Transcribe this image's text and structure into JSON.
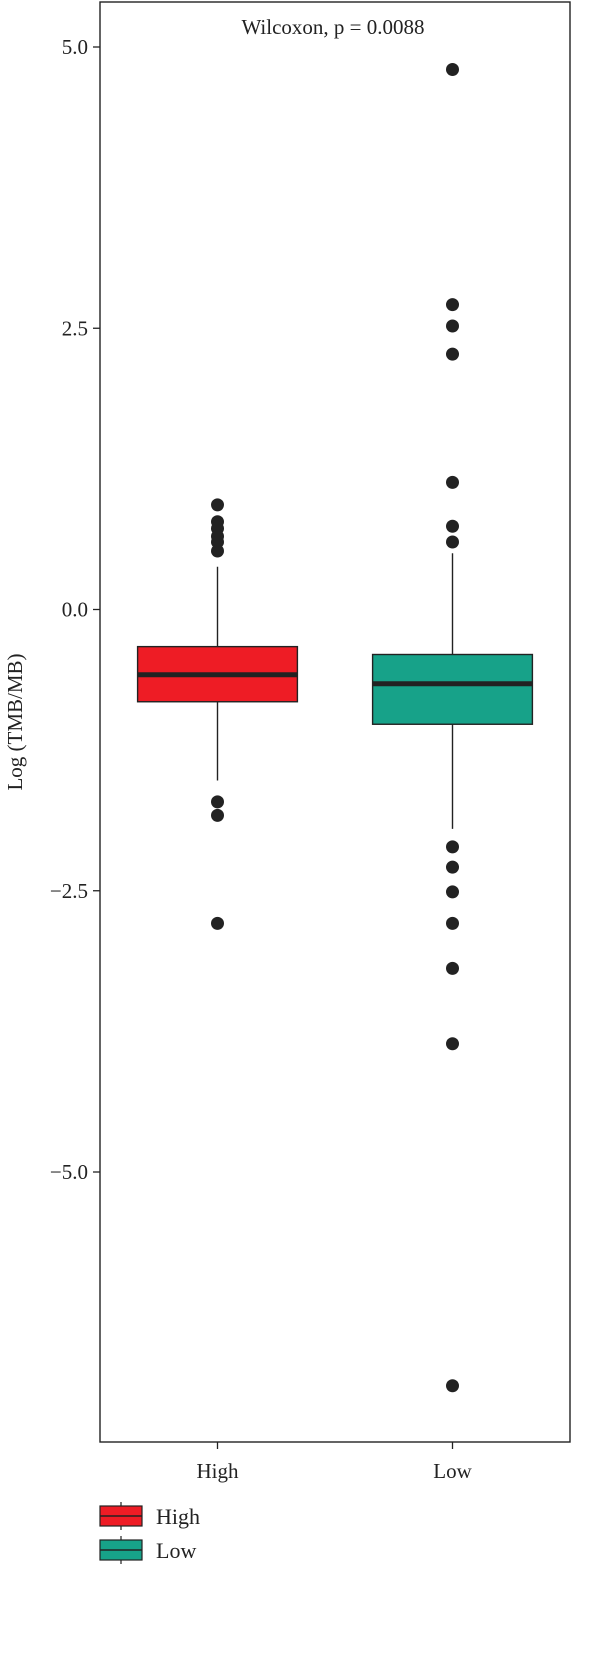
{
  "chart_data": {
    "type": "box",
    "title": "",
    "annotation": "Wilcoxon, p = 0.0088",
    "ylabel": "Log (TMB/MB)",
    "xlabel": "",
    "ylim": [
      -7.4,
      5.4
    ],
    "yticks": [
      5.0,
      2.5,
      0.0,
      -2.5,
      -5.0
    ],
    "ytick_labels": [
      "5.0",
      "2.5",
      "0.0",
      "−2.5",
      "−5.0"
    ],
    "categories": [
      "High",
      "Low"
    ],
    "series": [
      {
        "name": "High",
        "color": "#EE1C25",
        "q1": -0.82,
        "median": -0.58,
        "q3": -0.33,
        "whisker_low": -1.52,
        "whisker_high": 0.38,
        "outliers": [
          0.93,
          0.78,
          0.72,
          0.65,
          0.6,
          0.52,
          -1.71,
          -1.83,
          -2.79
        ]
      },
      {
        "name": "Low",
        "color": "#17A289",
        "q1": -1.02,
        "median": -0.66,
        "q3": -0.4,
        "whisker_low": -1.95,
        "whisker_high": 0.5,
        "outliers": [
          4.8,
          2.71,
          2.52,
          2.27,
          1.13,
          0.74,
          0.6,
          -2.11,
          -2.29,
          -2.51,
          -2.79,
          -3.19,
          -3.86,
          -6.9
        ]
      }
    ],
    "legend": {
      "position": "bottom-left",
      "items": [
        "High",
        "Low"
      ]
    },
    "grid": false
  }
}
